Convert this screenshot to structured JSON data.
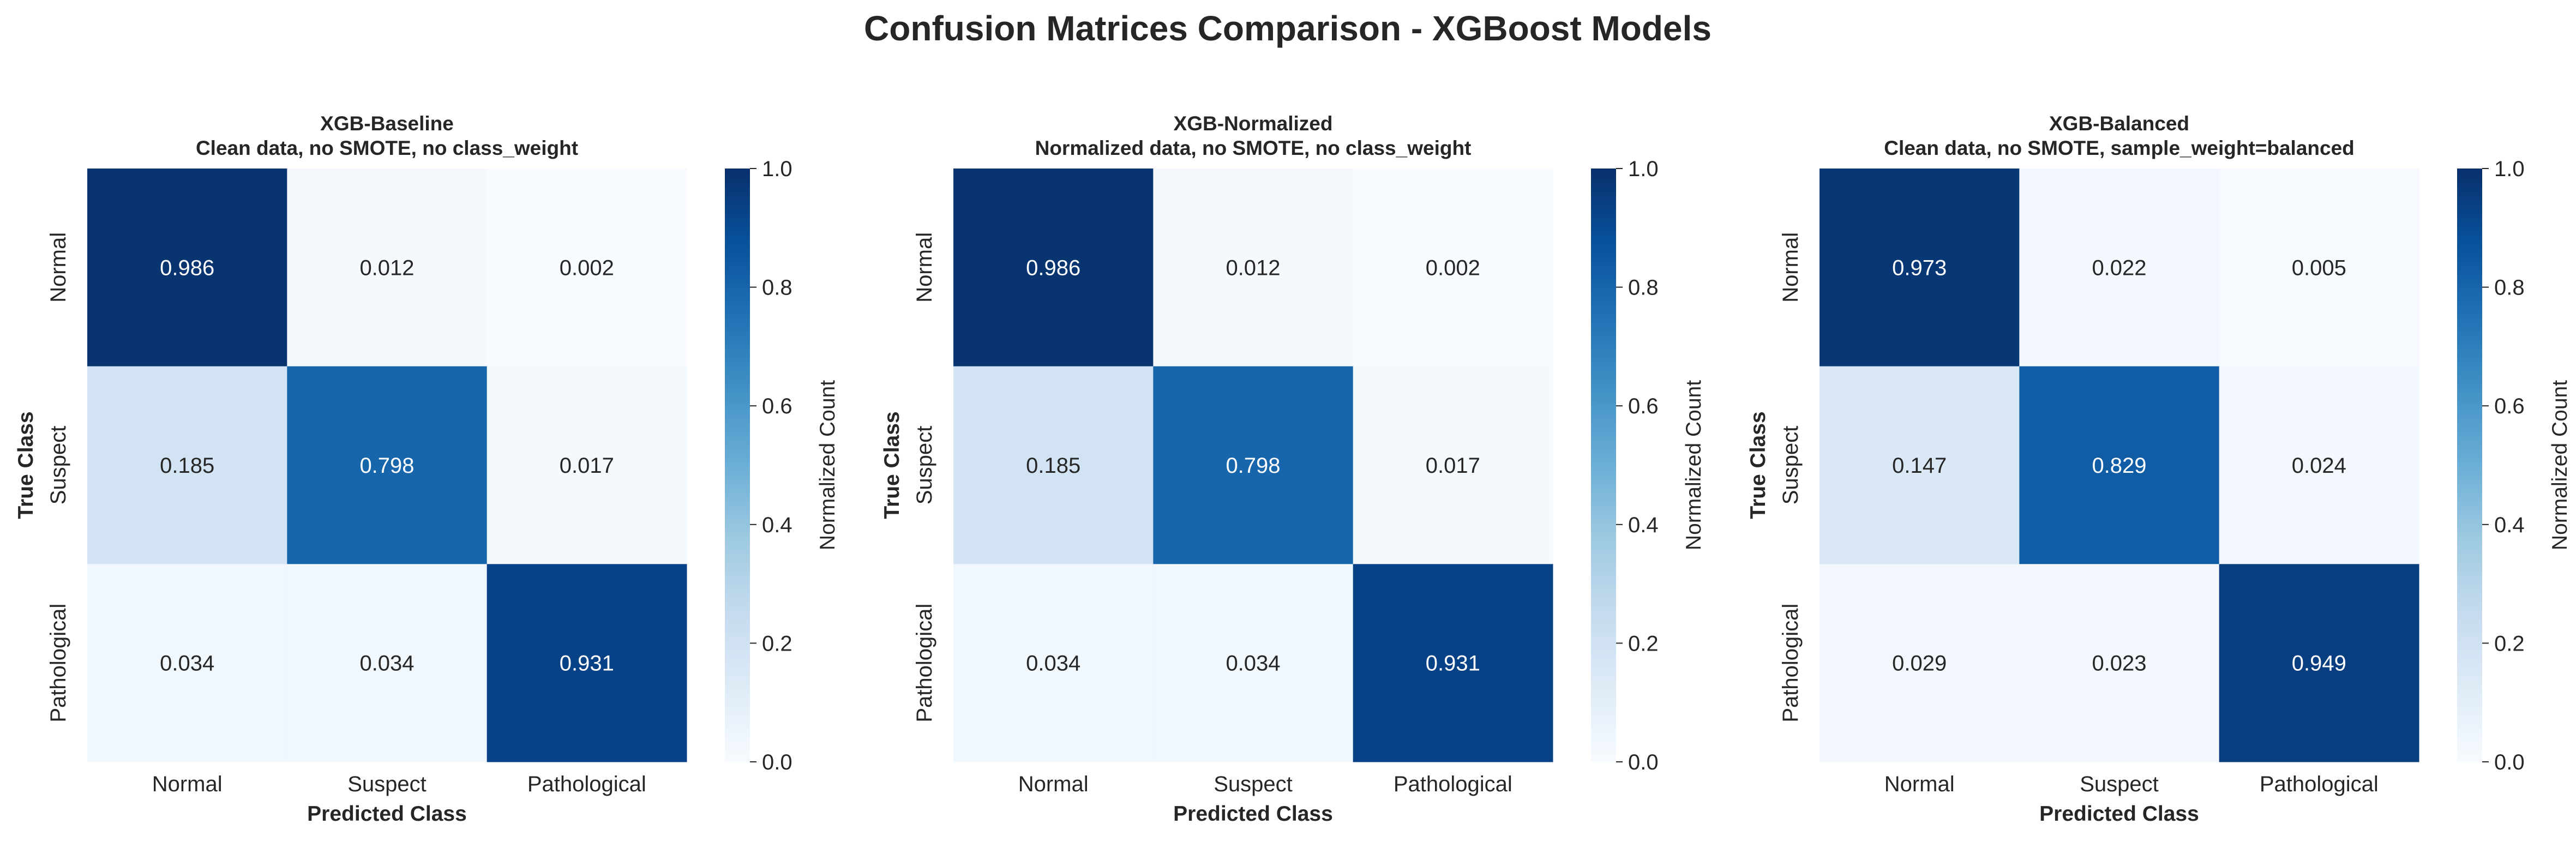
{
  "title": "Confusion Matrices Comparison - XGBoost Models",
  "chart_data": [
    {
      "type": "heatmap",
      "title": "XGB-Baseline",
      "subtitle": "Clean data, no SMOTE, no class_weight",
      "xlabel": "Predicted Class",
      "ylabel": "True Class",
      "x_categories": [
        "Normal",
        "Suspect",
        "Pathological"
      ],
      "y_categories": [
        "Normal",
        "Suspect",
        "Pathological"
      ],
      "values": [
        [
          0.986,
          0.012,
          0.002
        ],
        [
          0.185,
          0.798,
          0.017
        ],
        [
          0.034,
          0.034,
          0.931
        ]
      ],
      "colorbar": {
        "label": "Normalized Count",
        "range": [
          0.0,
          1.0
        ],
        "ticks": [
          "0.0",
          "0.2",
          "0.4",
          "0.6",
          "0.8",
          "1.0"
        ],
        "colormap": "Blues"
      }
    },
    {
      "type": "heatmap",
      "title": "XGB-Normalized",
      "subtitle": "Normalized data, no SMOTE, no class_weight",
      "xlabel": "Predicted Class",
      "ylabel": "True Class",
      "x_categories": [
        "Normal",
        "Suspect",
        "Pathological"
      ],
      "y_categories": [
        "Normal",
        "Suspect",
        "Pathological"
      ],
      "values": [
        [
          0.986,
          0.012,
          0.002
        ],
        [
          0.185,
          0.798,
          0.017
        ],
        [
          0.034,
          0.034,
          0.931
        ]
      ],
      "colorbar": {
        "label": "Normalized Count",
        "range": [
          0.0,
          1.0
        ],
        "ticks": [
          "0.0",
          "0.2",
          "0.4",
          "0.6",
          "0.8",
          "1.0"
        ],
        "colormap": "Blues"
      }
    },
    {
      "type": "heatmap",
      "title": "XGB-Balanced",
      "subtitle": "Clean data, no SMOTE, sample_weight=balanced",
      "xlabel": "Predicted Class",
      "ylabel": "True Class",
      "x_categories": [
        "Normal",
        "Suspect",
        "Pathological"
      ],
      "y_categories": [
        "Normal",
        "Suspect",
        "Pathological"
      ],
      "values": [
        [
          0.973,
          0.022,
          0.005
        ],
        [
          0.147,
          0.829,
          0.024
        ],
        [
          0.029,
          0.023,
          0.949
        ]
      ],
      "colorbar": {
        "label": "Normalized Count",
        "range": [
          0.0,
          1.0
        ],
        "ticks": [
          "0.0",
          "0.2",
          "0.4",
          "0.6",
          "0.8",
          "1.0"
        ],
        "colormap": "Blues"
      }
    }
  ]
}
